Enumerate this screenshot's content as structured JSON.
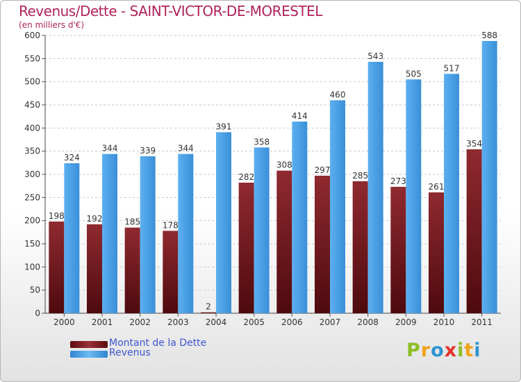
{
  "title": "Revenus/Dette - SAINT-VICTOR-DE-MORESTEL",
  "subtitle": "(en milliers d'€)",
  "logo": {
    "letters": [
      {
        "ch": "P",
        "color": "#8cbf26"
      },
      {
        "ch": "r",
        "color": "#f2a21a"
      },
      {
        "ch": "o",
        "color": "#2f93cf"
      },
      {
        "ch": "x",
        "color": "#e4312b"
      },
      {
        "ch": "i",
        "color": "#8cbf26"
      },
      {
        "ch": "t",
        "color": "#f2a21a"
      },
      {
        "ch": "i",
        "color": "#2f93cf"
      }
    ]
  },
  "colors": {
    "dette": "#7d1f25",
    "revenus": "#4aa3e8",
    "title": "#b0235a",
    "legend_text": "#3f56d2"
  },
  "chart_data": {
    "type": "bar",
    "categories": [
      "2000",
      "2001",
      "2002",
      "2003",
      "2004",
      "2005",
      "2006",
      "2007",
      "2008",
      "2009",
      "2010",
      "2011"
    ],
    "series": [
      {
        "name": "Montant de la Dette",
        "values": [
          198,
          192,
          185,
          178,
          2,
          282,
          308,
          297,
          285,
          273,
          261,
          354
        ]
      },
      {
        "name": "Revenus",
        "values": [
          324,
          344,
          339,
          344,
          391,
          358,
          414,
          460,
          543,
          505,
          517,
          588
        ]
      }
    ],
    "ylim": [
      0,
      600
    ],
    "yticks": [
      0,
      50,
      100,
      150,
      200,
      250,
      300,
      350,
      400,
      450,
      500,
      550,
      600
    ],
    "grid": true,
    "legend_position": "bottom-left"
  }
}
